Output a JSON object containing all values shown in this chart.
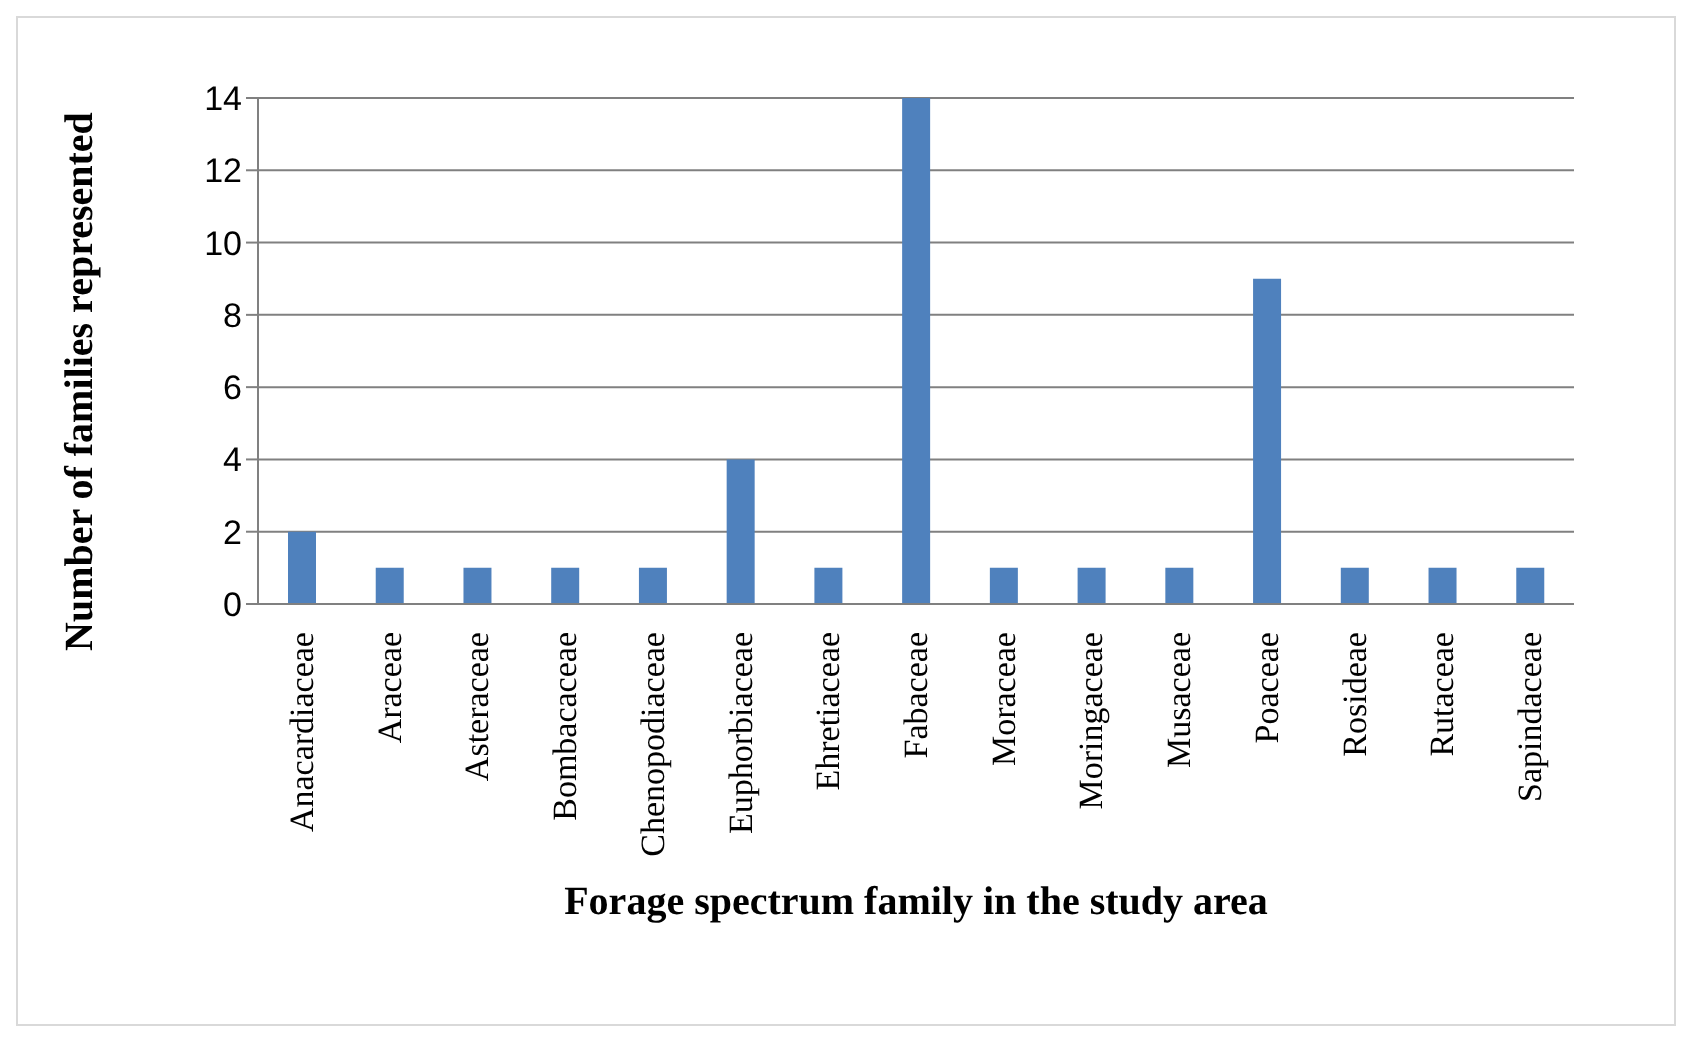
{
  "chart_data": {
    "type": "bar",
    "xlabel": "Forage spectrum family in the study area",
    "ylabel": "Number of families represented",
    "categories": [
      "Anacardiaceae",
      "Araceae",
      "Asteraceae",
      "Bombacaceae",
      "Chenopodiaceae",
      "Euphorbiaceae",
      "Ehretiaceae",
      "Fabaceae",
      "Moraceae",
      "Moringaceae",
      "Musaceae",
      "Poaceae",
      "Rosideae",
      "Rutaceae",
      "Sapindaceae"
    ],
    "values": [
      2,
      1,
      1,
      1,
      1,
      4,
      1,
      14,
      1,
      1,
      1,
      9,
      1,
      1,
      1
    ],
    "color": "#4f81bd",
    "ylim": [
      0,
      14
    ],
    "yticks": [
      0,
      2,
      4,
      6,
      8,
      10,
      12,
      14
    ],
    "grid": "y",
    "legend": false
  }
}
